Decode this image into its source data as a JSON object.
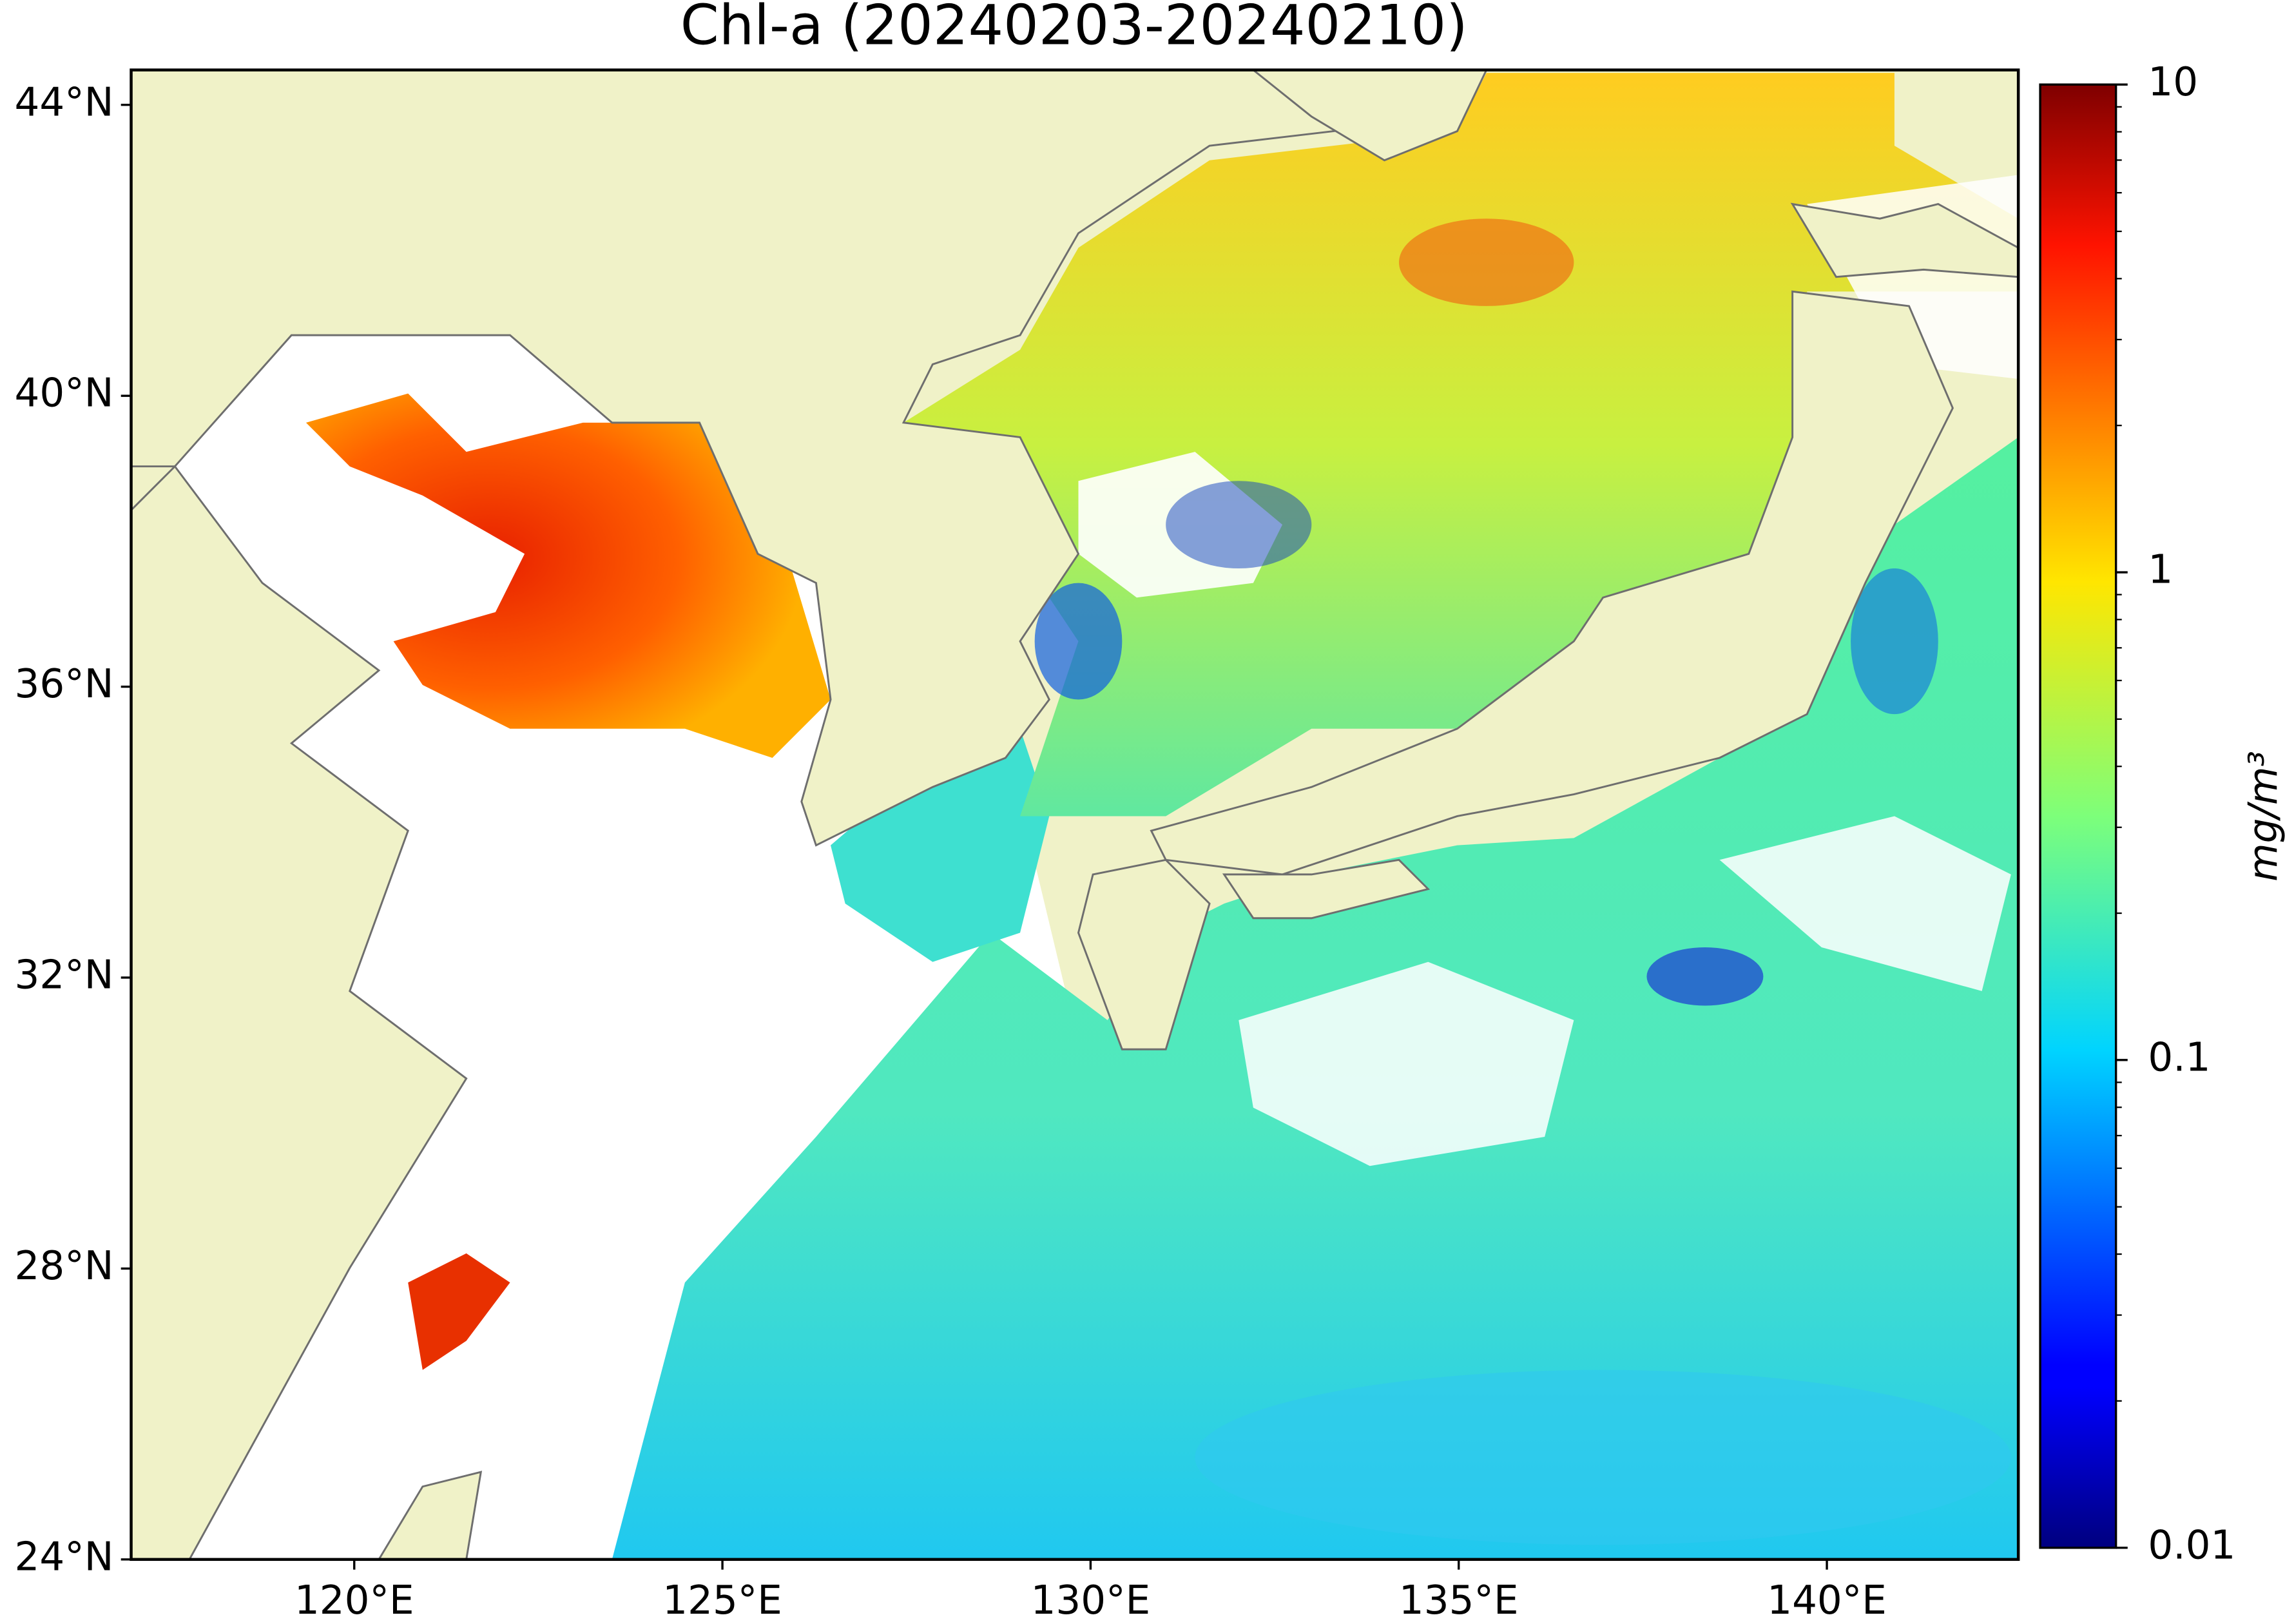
{
  "title": "Chl-a (20240203-20240210)",
  "map": {
    "xlim": [
      116.97,
      142.6
    ],
    "ylim": [
      24,
      44.48
    ],
    "xticks": [
      {
        "value": 120,
        "label": "120°E"
      },
      {
        "value": 125,
        "label": "125°E"
      },
      {
        "value": 130,
        "label": "130°E"
      },
      {
        "value": 135,
        "label": "135°E"
      },
      {
        "value": 140,
        "label": "140°E"
      }
    ],
    "yticks": [
      {
        "value": 24,
        "label": "24°N"
      },
      {
        "value": 28,
        "label": "28°N"
      },
      {
        "value": 32,
        "label": "32°N"
      },
      {
        "value": 36,
        "label": "36°N"
      },
      {
        "value": 40,
        "label": "40°N"
      },
      {
        "value": 44,
        "label": "44°N"
      }
    ]
  },
  "colorbar": {
    "label": "mg/m³",
    "scale": "log",
    "lim": [
      0.01,
      10
    ],
    "ticks": [
      0.01,
      0.1,
      1,
      10
    ],
    "minor_ticks": [
      0.02,
      0.03,
      0.04,
      0.05,
      0.06,
      0.07,
      0.08,
      0.09,
      0.2,
      0.3,
      0.4,
      0.5,
      0.6,
      0.7,
      0.8,
      0.9,
      2,
      3,
      4,
      5,
      6,
      7,
      8,
      9
    ]
  }
}
